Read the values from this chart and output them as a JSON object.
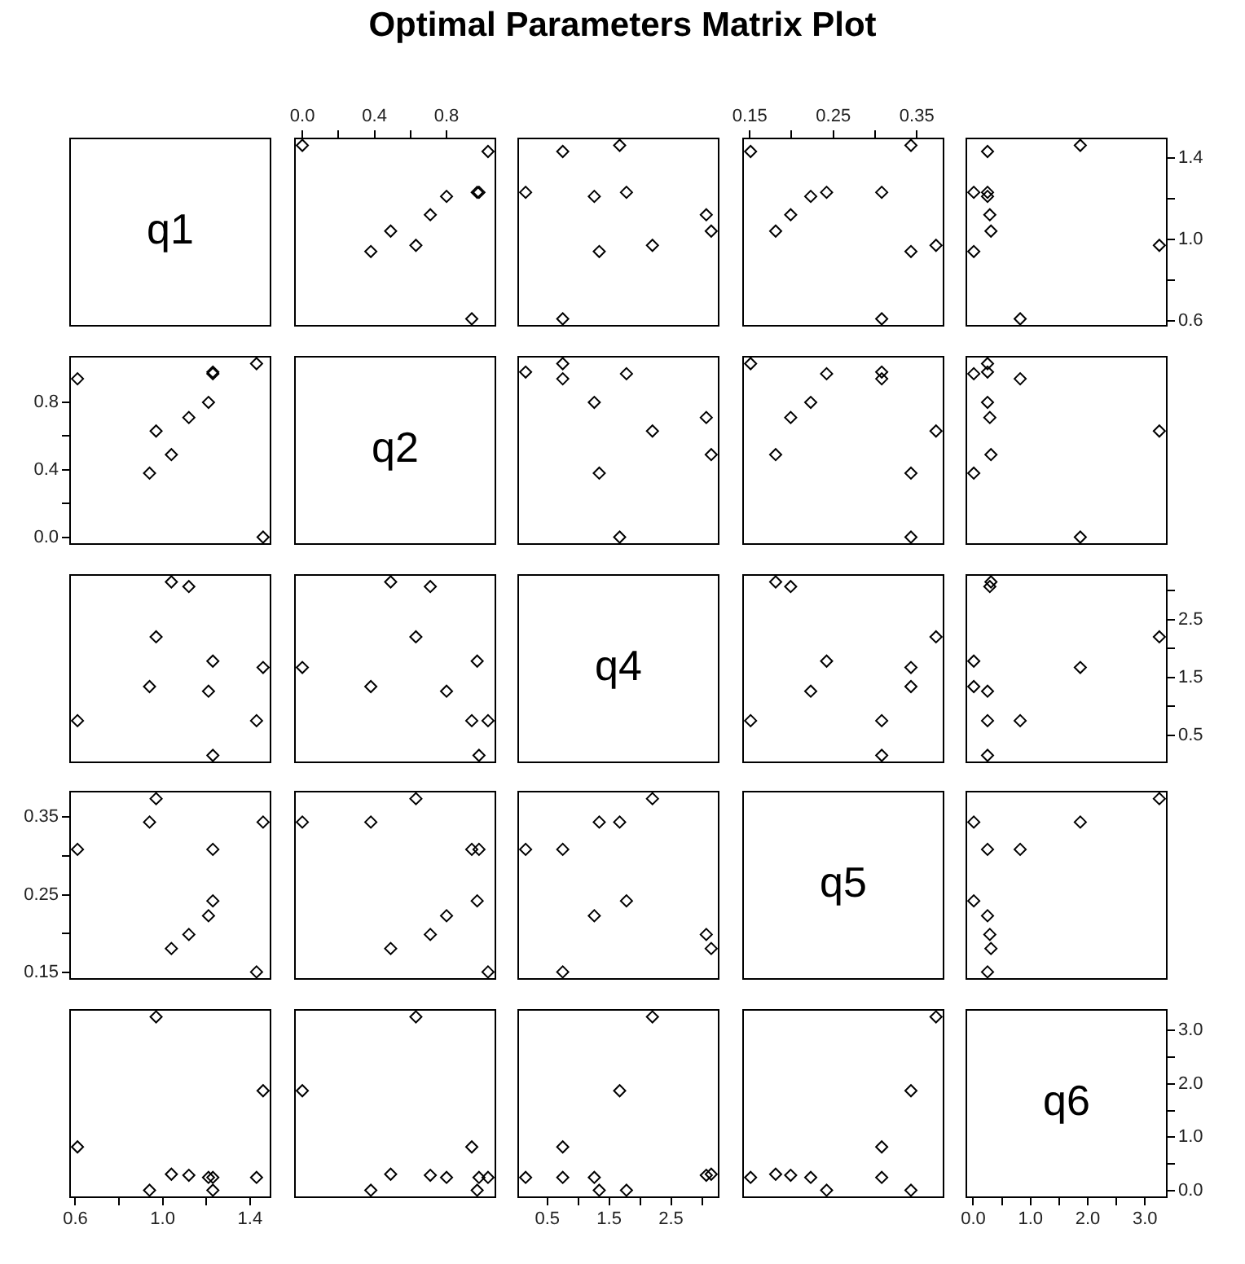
{
  "chart_data": [
    {
      "type": "other",
      "title": "Optimal Parameters Matrix Plot",
      "annotations": [
        "q1"
      ]
    },
    {
      "type": "scatter",
      "x": [
        0.94,
        0.38,
        0.63,
        0.49,
        0.71,
        0.8,
        0.98,
        0.97,
        1.03,
        0.0
      ],
      "values": [
        0.61,
        0.94,
        0.97,
        1.04,
        1.12,
        1.21,
        1.23,
        1.23,
        1.43,
        1.46
      ],
      "xlim": [
        -0.041,
        1.071
      ],
      "xticks": [
        {
          "value": 0,
          "label": "0.0"
        },
        {
          "value": 0.2,
          "label": null
        },
        0.4,
        {
          "value": 0.6,
          "label": null
        },
        0.8
      ],
      "ylim": [
        0.576,
        1.494
      ],
      "tick_labels": "x",
      "color": "#000000",
      "marker": "diamond"
    },
    {
      "type": "scatter",
      "x": [
        0.75,
        1.34,
        2.2,
        3.15,
        3.07,
        1.26,
        0.15,
        1.78,
        0.75,
        1.67
      ],
      "values": [
        0.61,
        0.94,
        0.97,
        1.04,
        1.12,
        1.21,
        1.23,
        1.23,
        1.43,
        1.46
      ],
      "xlim": [
        0.03,
        3.27
      ],
      "ylim": [
        0.576,
        1.494
      ],
      "tick_labels": false,
      "color": "#000000",
      "marker": "diamond"
    },
    {
      "type": "scatter",
      "x": [
        0.308,
        0.343,
        0.373,
        0.181,
        0.199,
        0.223,
        0.308,
        0.242,
        0.151,
        0.343
      ],
      "values": [
        0.61,
        0.94,
        0.97,
        1.04,
        1.12,
        1.21,
        1.23,
        1.23,
        1.43,
        1.46
      ],
      "xlim": [
        0.142,
        0.382
      ],
      "xticks": [
        0.15,
        {
          "value": 0.2,
          "label": null
        },
        0.25,
        {
          "value": 0.3,
          "label": null
        },
        0.35
      ],
      "ylim": [
        0.576,
        1.494
      ],
      "tick_labels": "x",
      "color": "#000000",
      "marker": "diamond"
    },
    {
      "type": "scatter",
      "x": [
        0.82,
        0.01,
        3.25,
        0.31,
        0.29,
        0.25,
        0.25,
        0.01,
        0.25,
        1.87
      ],
      "values": [
        0.61,
        0.94,
        0.97,
        1.04,
        1.12,
        1.21,
        1.23,
        1.23,
        1.43,
        1.46
      ],
      "xlim": [
        -0.12,
        3.38
      ],
      "ylim": [
        0.576,
        1.494
      ],
      "yticks": [
        0.6,
        {
          "value": 0.8,
          "label": null
        },
        {
          "value": 1,
          "label": "1.0"
        },
        {
          "value": 1.2,
          "label": null
        },
        1.4
      ],
      "tick_labels": "y",
      "color": "#000000",
      "marker": "diamond"
    },
    {
      "type": "scatter",
      "x": [
        0.61,
        0.94,
        0.97,
        1.04,
        1.12,
        1.21,
        1.23,
        1.23,
        1.43,
        1.46
      ],
      "values": [
        0.94,
        0.38,
        0.63,
        0.49,
        0.71,
        0.8,
        0.98,
        0.97,
        1.03,
        0.0
      ],
      "xlim": [
        0.576,
        1.494
      ],
      "ylim": [
        -0.041,
        1.071
      ],
      "yticks": [
        {
          "value": 0,
          "label": "0.0"
        },
        {
          "value": 0.2,
          "label": null
        },
        0.4,
        {
          "value": 0.6,
          "label": null
        },
        0.8
      ],
      "tick_labels": "y",
      "color": "#000000",
      "marker": "diamond"
    },
    {
      "type": "other",
      "annotations": [
        "q2"
      ]
    },
    {
      "type": "scatter",
      "x": [
        0.75,
        1.34,
        2.2,
        3.15,
        3.07,
        1.26,
        0.15,
        1.78,
        0.75,
        1.67
      ],
      "values": [
        0.94,
        0.38,
        0.63,
        0.49,
        0.71,
        0.8,
        0.98,
        0.97,
        1.03,
        0.0
      ],
      "xlim": [
        0.03,
        3.27
      ],
      "ylim": [
        -0.041,
        1.071
      ],
      "tick_labels": false,
      "color": "#000000",
      "marker": "diamond"
    },
    {
      "type": "scatter",
      "x": [
        0.308,
        0.343,
        0.373,
        0.181,
        0.199,
        0.223,
        0.308,
        0.242,
        0.151,
        0.343
      ],
      "values": [
        0.94,
        0.38,
        0.63,
        0.49,
        0.71,
        0.8,
        0.98,
        0.97,
        1.03,
        0.0
      ],
      "xlim": [
        0.142,
        0.382
      ],
      "ylim": [
        -0.041,
        1.071
      ],
      "tick_labels": false,
      "color": "#000000",
      "marker": "diamond"
    },
    {
      "type": "scatter",
      "x": [
        0.82,
        0.01,
        3.25,
        0.31,
        0.29,
        0.25,
        0.25,
        0.01,
        0.25,
        1.87
      ],
      "values": [
        0.94,
        0.38,
        0.63,
        0.49,
        0.71,
        0.8,
        0.98,
        0.97,
        1.03,
        0.0
      ],
      "xlim": [
        -0.12,
        3.38
      ],
      "ylim": [
        -0.041,
        1.071
      ],
      "tick_labels": false,
      "color": "#000000",
      "marker": "diamond"
    },
    {
      "type": "scatter",
      "x": [
        0.61,
        0.94,
        0.97,
        1.04,
        1.12,
        1.21,
        1.23,
        1.23,
        1.43,
        1.46
      ],
      "values": [
        0.75,
        1.34,
        2.2,
        3.15,
        3.07,
        1.26,
        0.15,
        1.78,
        0.75,
        1.67
      ],
      "xlim": [
        0.576,
        1.494
      ],
      "ylim": [
        0.03,
        3.27
      ],
      "tick_labels": false,
      "color": "#000000",
      "marker": "diamond"
    },
    {
      "type": "scatter",
      "x": [
        0.94,
        0.38,
        0.63,
        0.49,
        0.71,
        0.8,
        0.98,
        0.97,
        1.03,
        0.0
      ],
      "values": [
        0.75,
        1.34,
        2.2,
        3.15,
        3.07,
        1.26,
        0.15,
        1.78,
        0.75,
        1.67
      ],
      "xlim": [
        -0.041,
        1.071
      ],
      "ylim": [
        0.03,
        3.27
      ],
      "tick_labels": false,
      "color": "#000000",
      "marker": "diamond"
    },
    {
      "type": "other",
      "annotations": [
        "q4"
      ]
    },
    {
      "type": "scatter",
      "x": [
        0.308,
        0.343,
        0.373,
        0.181,
        0.199,
        0.223,
        0.308,
        0.242,
        0.151,
        0.343
      ],
      "values": [
        0.75,
        1.34,
        2.2,
        3.15,
        3.07,
        1.26,
        0.15,
        1.78,
        0.75,
        1.67
      ],
      "xlim": [
        0.142,
        0.382
      ],
      "ylim": [
        0.03,
        3.27
      ],
      "tick_labels": false,
      "color": "#000000",
      "marker": "diamond"
    },
    {
      "type": "scatter",
      "x": [
        0.82,
        0.01,
        3.25,
        0.31,
        0.29,
        0.25,
        0.25,
        0.01,
        0.25,
        1.87
      ],
      "values": [
        0.75,
        1.34,
        2.2,
        3.15,
        3.07,
        1.26,
        0.15,
        1.78,
        0.75,
        1.67
      ],
      "xlim": [
        -0.12,
        3.38
      ],
      "ylim": [
        0.03,
        3.27
      ],
      "yticks": [
        0.5,
        {
          "value": 1,
          "label": null
        },
        1.5,
        {
          "value": 2,
          "label": null
        },
        2.5,
        {
          "value": 3,
          "label": null
        }
      ],
      "tick_labels": "y",
      "color": "#000000",
      "marker": "diamond"
    },
    {
      "type": "scatter",
      "x": [
        0.61,
        0.94,
        0.97,
        1.04,
        1.12,
        1.21,
        1.23,
        1.23,
        1.43,
        1.46
      ],
      "values": [
        0.308,
        0.343,
        0.373,
        0.181,
        0.199,
        0.223,
        0.308,
        0.242,
        0.151,
        0.343
      ],
      "xlim": [
        0.576,
        1.494
      ],
      "ylim": [
        0.142,
        0.382
      ],
      "yticks": [
        0.15,
        {
          "value": 0.2,
          "label": null
        },
        0.25,
        {
          "value": 0.3,
          "label": null
        },
        0.35
      ],
      "tick_labels": "y",
      "color": "#000000",
      "marker": "diamond"
    },
    {
      "type": "scatter",
      "x": [
        0.94,
        0.38,
        0.63,
        0.49,
        0.71,
        0.8,
        0.98,
        0.97,
        1.03,
        0.0
      ],
      "values": [
        0.308,
        0.343,
        0.373,
        0.181,
        0.199,
        0.223,
        0.308,
        0.242,
        0.151,
        0.343
      ],
      "xlim": [
        -0.041,
        1.071
      ],
      "ylim": [
        0.142,
        0.382
      ],
      "tick_labels": false,
      "color": "#000000",
      "marker": "diamond"
    },
    {
      "type": "scatter",
      "x": [
        0.75,
        1.34,
        2.2,
        3.15,
        3.07,
        1.26,
        0.15,
        1.78,
        0.75,
        1.67
      ],
      "values": [
        0.308,
        0.343,
        0.373,
        0.181,
        0.199,
        0.223,
        0.308,
        0.242,
        0.151,
        0.343
      ],
      "xlim": [
        0.03,
        3.27
      ],
      "ylim": [
        0.142,
        0.382
      ],
      "tick_labels": false,
      "color": "#000000",
      "marker": "diamond"
    },
    {
      "type": "other",
      "annotations": [
        "q5"
      ]
    },
    {
      "type": "scatter",
      "x": [
        0.82,
        0.01,
        3.25,
        0.31,
        0.29,
        0.25,
        0.25,
        0.01,
        0.25,
        1.87
      ],
      "values": [
        0.308,
        0.343,
        0.373,
        0.181,
        0.199,
        0.223,
        0.308,
        0.242,
        0.151,
        0.343
      ],
      "xlim": [
        -0.12,
        3.38
      ],
      "ylim": [
        0.142,
        0.382
      ],
      "tick_labels": false,
      "color": "#000000",
      "marker": "diamond"
    },
    {
      "type": "scatter",
      "x": [
        0.61,
        0.94,
        0.97,
        1.04,
        1.12,
        1.21,
        1.23,
        1.23,
        1.43,
        1.46
      ],
      "values": [
        0.82,
        0.01,
        3.25,
        0.31,
        0.29,
        0.25,
        0.25,
        0.01,
        0.25,
        1.87
      ],
      "xlim": [
        0.576,
        1.494
      ],
      "xticks": [
        0.6,
        {
          "value": 0.8,
          "label": null
        },
        {
          "value": 1,
          "label": "1.0"
        },
        {
          "value": 1.2,
          "label": null
        },
        1.4
      ],
      "ylim": [
        -0.12,
        3.38
      ],
      "tick_labels": "x",
      "color": "#000000",
      "marker": "diamond"
    },
    {
      "type": "scatter",
      "x": [
        0.94,
        0.38,
        0.63,
        0.49,
        0.71,
        0.8,
        0.98,
        0.97,
        1.03,
        0.0
      ],
      "values": [
        0.82,
        0.01,
        3.25,
        0.31,
        0.29,
        0.25,
        0.25,
        0.01,
        0.25,
        1.87
      ],
      "xlim": [
        -0.041,
        1.071
      ],
      "ylim": [
        -0.12,
        3.38
      ],
      "tick_labels": false,
      "color": "#000000",
      "marker": "diamond"
    },
    {
      "type": "scatter",
      "x": [
        0.75,
        1.34,
        2.2,
        3.15,
        3.07,
        1.26,
        0.15,
        1.78,
        0.75,
        1.67
      ],
      "values": [
        0.82,
        0.01,
        3.25,
        0.31,
        0.29,
        0.25,
        0.25,
        0.01,
        0.25,
        1.87
      ],
      "xlim": [
        0.03,
        3.27
      ],
      "xticks": [
        0.5,
        {
          "value": 1,
          "label": null
        },
        1.5,
        {
          "value": 2,
          "label": null
        },
        2.5,
        {
          "value": 3,
          "label": null
        }
      ],
      "ylim": [
        -0.12,
        3.38
      ],
      "tick_labels": "x",
      "color": "#000000",
      "marker": "diamond"
    },
    {
      "type": "scatter",
      "x": [
        0.308,
        0.343,
        0.373,
        0.181,
        0.199,
        0.223,
        0.308,
        0.242,
        0.151,
        0.343
      ],
      "values": [
        0.82,
        0.01,
        3.25,
        0.31,
        0.29,
        0.25,
        0.25,
        0.01,
        0.25,
        1.87
      ],
      "xlim": [
        0.142,
        0.382
      ],
      "ylim": [
        -0.12,
        3.38
      ],
      "tick_labels": false,
      "color": "#000000",
      "marker": "diamond"
    },
    {
      "type": "scatter",
      "annotations": [
        "q6"
      ],
      "xlim": [
        -0.12,
        3.38
      ],
      "xticks": [
        {
          "value": 0,
          "label": "0.0"
        },
        {
          "value": 0.5,
          "label": null
        },
        {
          "value": 1,
          "label": "1.0"
        },
        {
          "value": 1.5,
          "label": null
        },
        {
          "value": 2,
          "label": "2.0"
        },
        {
          "value": 2.5,
          "label": null
        },
        {
          "value": 3,
          "label": "3.0"
        }
      ],
      "ylim": [
        -0.12,
        3.38
      ],
      "yticks": [
        {
          "value": 0,
          "label": "0.0"
        },
        {
          "value": 0.5,
          "label": null
        },
        {
          "value": 1,
          "label": "1.0"
        },
        {
          "value": 1.5,
          "label": null
        },
        {
          "value": 2,
          "label": "2.0"
        },
        {
          "value": 2.5,
          "label": null
        },
        {
          "value": 3,
          "label": "3.0"
        }
      ]
    }
  ]
}
